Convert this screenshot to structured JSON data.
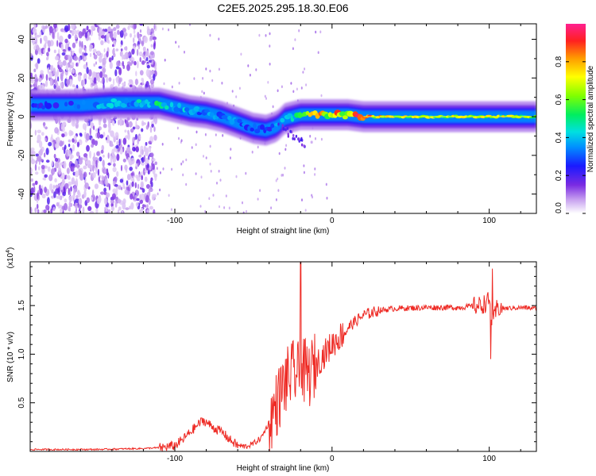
{
  "title": "C2E5.2025.295.18.30.E06",
  "colors": {
    "snr_line": "#ee2a24",
    "axis": "#000000",
    "background": "#ffffff"
  },
  "chart_data": [
    {
      "type": "heatmap",
      "name": "spectrogram",
      "xlabel": "Height of straight line (km)",
      "ylabel": "Frequency (Hz)",
      "xlim": [
        -192,
        130
      ],
      "ylim": [
        -50,
        48
      ],
      "x_ticks": [
        "-100",
        "0",
        "100"
      ],
      "x_tick_values": [
        -100,
        0,
        100
      ],
      "y_ticks": [
        "40",
        "20",
        "0",
        "-20",
        "-40"
      ],
      "y_tick_values": [
        40,
        20,
        0,
        -20,
        -40
      ],
      "colorbar": {
        "label": "Normalized spectral amplitude",
        "range": [
          0,
          1
        ],
        "ticks": [
          "0.0",
          "0.2",
          "0.4",
          "0.6",
          "0.8"
        ],
        "tick_values": [
          0.0,
          0.2,
          0.4,
          0.6,
          0.8
        ]
      },
      "ridge": {
        "x": [
          -190,
          -160,
          -140,
          -120,
          -110,
          -100,
          -90,
          -80,
          -70,
          -60,
          -50,
          -42,
          -35,
          -30,
          -25,
          -20,
          -10,
          0,
          10,
          20,
          40,
          60,
          80,
          100,
          130
        ],
        "freq_hz": [
          6,
          6,
          7,
          7,
          7,
          5,
          3,
          2,
          0,
          -3,
          -6,
          -7,
          -5,
          -1,
          0,
          1,
          1,
          1,
          1,
          0,
          0,
          0,
          0,
          0,
          0
        ],
        "amplitude": [
          0.3,
          0.35,
          0.4,
          0.45,
          0.5,
          0.45,
          0.4,
          0.4,
          0.35,
          0.35,
          0.3,
          0.3,
          0.35,
          0.45,
          0.5,
          0.6,
          0.9,
          0.8,
          0.85,
          0.9,
          0.75,
          0.7,
          0.7,
          0.75,
          0.65
        ]
      },
      "noise_region_x": [
        -192,
        -112
      ]
    },
    {
      "type": "line",
      "name": "snr",
      "xlabel": "Height of straight line (km)",
      "ylabel": "SNR (10 * v/v)",
      "y_multiplier_label": "(x10",
      "y_multiplier_exp": "4",
      "y_multiplier_close": ")",
      "xlim": [
        -192,
        130
      ],
      "ylim": [
        0,
        1.95
      ],
      "x_ticks": [
        "-100",
        "0",
        "100"
      ],
      "x_tick_values": [
        -100,
        0,
        100
      ],
      "y_ticks": [
        "1.5",
        "1.0",
        "0.5"
      ],
      "y_tick_values": [
        1.5,
        1.0,
        0.5
      ],
      "series": [
        {
          "name": "SNR",
          "x": [
            -192,
            -150,
            -120,
            -108,
            -100,
            -95,
            -90,
            -85,
            -82,
            -80,
            -75,
            -70,
            -65,
            -60,
            -55,
            -50,
            -45,
            -40,
            -35,
            -30,
            -25,
            -22,
            -20,
            -18,
            -15,
            -10,
            -5,
            0,
            5,
            10,
            15,
            20,
            30,
            40,
            60,
            80,
            95,
            100,
            102,
            105,
            110,
            120,
            130
          ],
          "y": [
            0.02,
            0.02,
            0.03,
            0.04,
            0.06,
            0.12,
            0.2,
            0.28,
            0.32,
            0.3,
            0.24,
            0.2,
            0.12,
            0.06,
            0.05,
            0.08,
            0.14,
            0.3,
            0.5,
            0.7,
            0.8,
            0.8,
            0.72,
            0.82,
            0.78,
            0.9,
            1.0,
            1.1,
            1.18,
            1.27,
            1.34,
            1.4,
            1.45,
            1.47,
            1.48,
            1.48,
            1.5,
            1.55,
            1.3,
            1.48,
            1.47,
            1.48,
            1.47
          ]
        }
      ],
      "spikes": [
        {
          "x": -20,
          "y": 1.95
        },
        {
          "x": 102,
          "y": 1.88
        },
        {
          "x": 101,
          "y": 0.95
        }
      ]
    }
  ]
}
